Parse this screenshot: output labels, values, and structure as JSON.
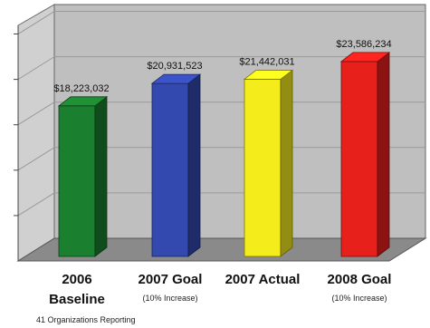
{
  "chart_data": {
    "type": "bar",
    "categories": [
      "2006",
      "2007 Goal",
      "2007 Actual",
      "2008 Goal"
    ],
    "category_lines2": [
      "Baseline",
      "",
      "",
      ""
    ],
    "category_subtitles": [
      "",
      "(10% Increase)",
      "",
      "(10% Increase)"
    ],
    "values": [
      18223032,
      20931523,
      21442031,
      23586234
    ],
    "data_labels": [
      "$18,223,032",
      "$20,931,523",
      "$21,442,031",
      "$23,586,234"
    ],
    "bar_colors": [
      "#1a7f2e",
      "#3349b0",
      "#f5ec1c",
      "#e8201c"
    ],
    "ylim": [
      0,
      25000000
    ],
    "grid": true,
    "style": "3d"
  },
  "footnote": "41 Organizations Reporting"
}
